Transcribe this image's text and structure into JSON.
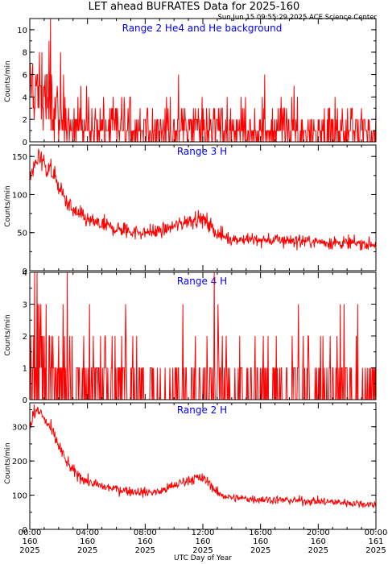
{
  "figure": {
    "title": "LET ahead BUFRATES Data for 2025-160",
    "timestamp": "Sun Jun 15 09:55:29 2025 ACE Science Center",
    "xlabel": "UTC Day of Year",
    "x_ticks": [
      {
        "time": "00:00",
        "doy": "160",
        "year": "2025"
      },
      {
        "time": "04:00",
        "doy": "160",
        "year": "2025"
      },
      {
        "time": "08:00",
        "doy": "160",
        "year": "2025"
      },
      {
        "time": "12:00",
        "doy": "160",
        "year": "2025"
      },
      {
        "time": "16:00",
        "doy": "160",
        "year": "2025"
      },
      {
        "time": "20:00",
        "doy": "160",
        "year": "2025"
      },
      {
        "time": "00:00",
        "doy": "161",
        "year": "2025"
      }
    ]
  },
  "colors": {
    "series": "#ff0000",
    "panel_label": "#0000ff",
    "axes": "#000000"
  },
  "chart_data": [
    {
      "type": "line",
      "title": "Range 2 He4 and He background",
      "ylabel": "Counts/min",
      "xlim_hours": [
        0,
        24
      ],
      "ylim": [
        0,
        11
      ],
      "yticks": [
        0,
        2,
        4,
        6,
        8,
        10
      ],
      "grid": false,
      "profile": {
        "hours": [
          0,
          0.3,
          0.6,
          1.0,
          1.3,
          1.6,
          2.0,
          3.0,
          4.0,
          6.0,
          8.0,
          10.0,
          12.0,
          14.0,
          16.0,
          18.0,
          20.0,
          22.0,
          24.0
        ],
        "level": [
          4.5,
          4.0,
          3.8,
          4.2,
          3.6,
          3.0,
          2.4,
          1.8,
          1.5,
          1.3,
          1.3,
          1.4,
          1.4,
          1.2,
          1.2,
          1.1,
          1.1,
          1.1,
          1.0
        ]
      },
      "peak": {
        "hour": 1.45,
        "value": 11
      },
      "discrete": true
    },
    {
      "type": "line",
      "title": "Range 3 H",
      "ylabel": "Counts/min",
      "xlim_hours": [
        0,
        24
      ],
      "ylim": [
        0,
        165
      ],
      "yticks": [
        0,
        50,
        100,
        150
      ],
      "grid": false,
      "profile": {
        "hours": [
          0,
          0.2,
          0.5,
          0.8,
          1.0,
          1.3,
          1.6,
          2.0,
          2.5,
          3.0,
          4.0,
          5.0,
          6.0,
          7.0,
          8.0,
          9.0,
          10.0,
          11.0,
          11.5,
          12.0,
          12.5,
          13.0,
          14.0,
          16.0,
          18.0,
          20.0,
          22.0,
          24.0
        ],
        "level": [
          115,
          130,
          145,
          150,
          138,
          135,
          128,
          110,
          92,
          78,
          66,
          60,
          55,
          52,
          50,
          52,
          58,
          66,
          69,
          67,
          60,
          48,
          42,
          40,
          40,
          38,
          36,
          35
        ]
      },
      "peak": {
        "hour": 0.6,
        "value": 160
      },
      "discrete": false
    },
    {
      "type": "line",
      "title": "Range 4 H",
      "ylabel": "Counts/min",
      "xlim_hours": [
        0,
        24
      ],
      "ylim": [
        0,
        4
      ],
      "yticks": [
        0,
        1,
        2,
        3,
        4
      ],
      "grid": false,
      "profile": {
        "hours": [
          0,
          2,
          4,
          8,
          12,
          16,
          20,
          24
        ],
        "level": [
          0.9,
          0.7,
          0.5,
          0.45,
          0.5,
          0.45,
          0.45,
          0.45
        ]
      },
      "peak": {
        "hour": 2.6,
        "value": 4
      },
      "discrete": true
    },
    {
      "type": "line",
      "title": "Range 2 H",
      "ylabel": "Counts/min",
      "xlim_hours": [
        0,
        24
      ],
      "ylim": [
        0,
        370
      ],
      "yticks": [
        0,
        100,
        200,
        300
      ],
      "grid": false,
      "profile": {
        "hours": [
          0,
          0.2,
          0.5,
          0.8,
          1.0,
          1.3,
          1.6,
          2.0,
          2.5,
          3.0,
          4.0,
          5.0,
          6.0,
          7.0,
          8.0,
          9.0,
          10.0,
          11.0,
          11.5,
          12.0,
          12.5,
          13.0,
          14.0,
          16.0,
          18.0,
          20.0,
          22.0,
          24.0
        ],
        "level": [
          300,
          330,
          345,
          340,
          320,
          305,
          280,
          245,
          200,
          170,
          140,
          125,
          118,
          112,
          108,
          110,
          128,
          145,
          150,
          148,
          135,
          105,
          92,
          88,
          85,
          82,
          78,
          72
        ]
      },
      "peak": {
        "hour": 0.3,
        "value": 365
      },
      "discrete": false
    }
  ]
}
